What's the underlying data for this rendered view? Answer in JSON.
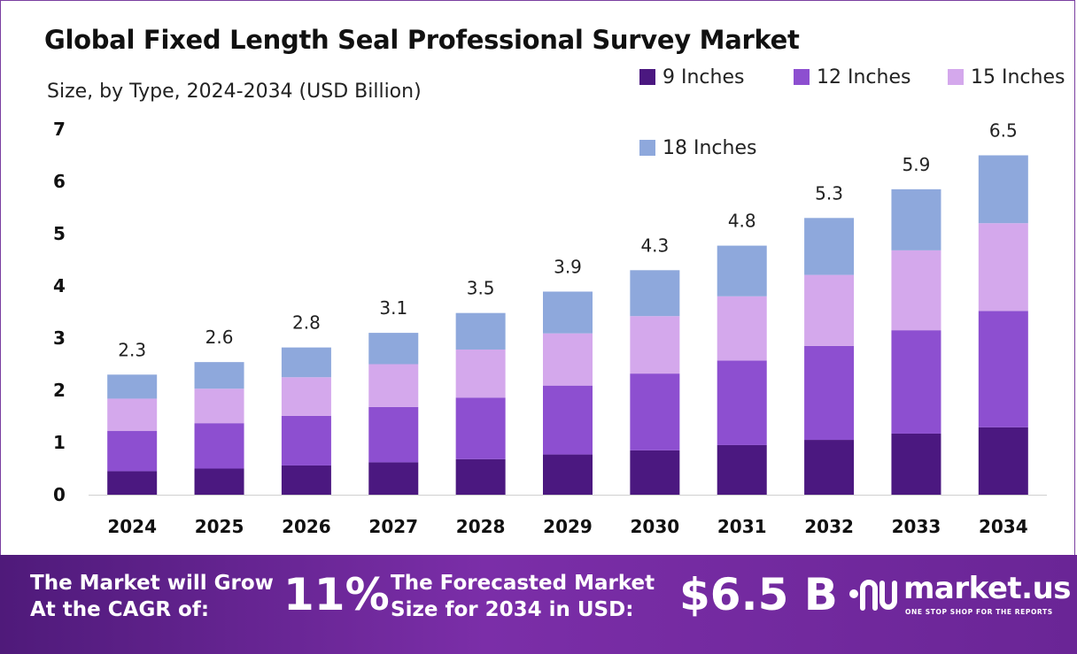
{
  "title": "Global Fixed Length Seal Professional Survey Market",
  "subtitle": "Size, by Type, 2024-2034 (USD Billion)",
  "colors": {
    "9 Inches": "#4b1880",
    "12 Inches": "#8d4fd0",
    "15 Inches": "#d4a8ec",
    "18 Inches": "#8ea8dc"
  },
  "chart_data": {
    "type": "bar",
    "stacked": true,
    "categories": [
      "2024",
      "2025",
      "2026",
      "2027",
      "2028",
      "2029",
      "2030",
      "2031",
      "2032",
      "2033",
      "2034"
    ],
    "series": [
      {
        "name": "9 Inches",
        "values": [
          0.45,
          0.5,
          0.56,
          0.62,
          0.68,
          0.77,
          0.85,
          0.95,
          1.05,
          1.17,
          1.29
        ]
      },
      {
        "name": "12 Inches",
        "values": [
          0.77,
          0.87,
          0.95,
          1.06,
          1.18,
          1.32,
          1.47,
          1.62,
          1.8,
          1.98,
          2.23
        ]
      },
      {
        "name": "15 Inches",
        "values": [
          0.62,
          0.66,
          0.74,
          0.82,
          0.92,
          1.0,
          1.1,
          1.23,
          1.36,
          1.53,
          1.68
        ]
      },
      {
        "name": "18 Inches",
        "values": [
          0.46,
          0.51,
          0.57,
          0.6,
          0.7,
          0.8,
          0.88,
          0.97,
          1.09,
          1.17,
          1.3
        ]
      }
    ],
    "totals": [
      "2.3",
      "2.6",
      "2.8",
      "3.1",
      "3.5",
      "3.9",
      "4.3",
      "4.8",
      "5.3",
      "5.9",
      "6.5"
    ],
    "ylim": [
      0,
      7
    ],
    "yticks": [
      "0",
      "1",
      "2",
      "3",
      "4",
      "5",
      "6",
      "7"
    ],
    "xlabel": "",
    "ylabel": "",
    "grid": false,
    "legend_position": "top-right"
  },
  "legend": [
    "9 Inches",
    "12 Inches",
    "15 Inches",
    "18 Inches"
  ],
  "footer": {
    "cagr_label_line1": "The Market will Grow",
    "cagr_label_line2": "At the CAGR of:",
    "cagr_value": "11%",
    "forecast_label_line1": "The Forecasted Market",
    "forecast_label_line2": "Size for 2034 in USD:",
    "forecast_value": "$6.5 B",
    "brand_name": "market.us",
    "brand_tagline": "ONE STOP SHOP FOR THE REPORTS"
  }
}
